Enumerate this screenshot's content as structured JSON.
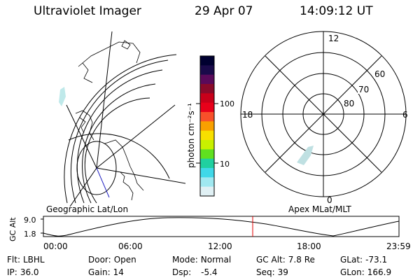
{
  "header": {
    "title": "Ultraviolet Imager",
    "date": "29 Apr 07",
    "time": "14:09:12 UT"
  },
  "left_map": {
    "label": "Geographic Lat/Lon"
  },
  "right_map": {
    "label": "Apex MLat/MLT",
    "mlt_labels": [
      "12",
      "18",
      "6",
      "0"
    ],
    "lat_labels": [
      "60",
      "70",
      "80"
    ]
  },
  "colorbar": {
    "unit_label": "photon cm⁻²s⁻¹",
    "ticks": [
      "100",
      "10"
    ],
    "colors": [
      "#000030",
      "#1a0a4a",
      "#5a0a5a",
      "#8a0a2a",
      "#c8001a",
      "#e8001a",
      "#f8502a",
      "#f8a000",
      "#f8e000",
      "#c8f000",
      "#60e020",
      "#20d0a0",
      "#40d8e8",
      "#a0e8f0",
      "#e0f0f4"
    ]
  },
  "altitude_plot": {
    "ylabel": "GC Alt",
    "yticks": [
      "9.0",
      "1.8"
    ],
    "xticks": [
      "00:00",
      "06:00",
      "12:00",
      "18:00",
      "23:59"
    ]
  },
  "info": {
    "filter_label": "Flt:",
    "filter_value": "LBHL",
    "ip_label": "IP:",
    "ip_value": "36.0",
    "door_label": "Door:",
    "door_value": "Open",
    "gain_label": "Gain:",
    "gain_value": "14",
    "mode_label": "Mode:",
    "mode_value": "Normal",
    "dsp_label": "Dsp:",
    "dsp_value": "-5.4",
    "gcalt_label": "GC Alt:",
    "gcalt_value": "7.8 Re",
    "seq_label": "Seq:",
    "seq_value": "39",
    "glat_label": "GLat:",
    "glat_value": "-73.1",
    "glon_label": "GLon:",
    "glon_value": "166.9"
  }
}
